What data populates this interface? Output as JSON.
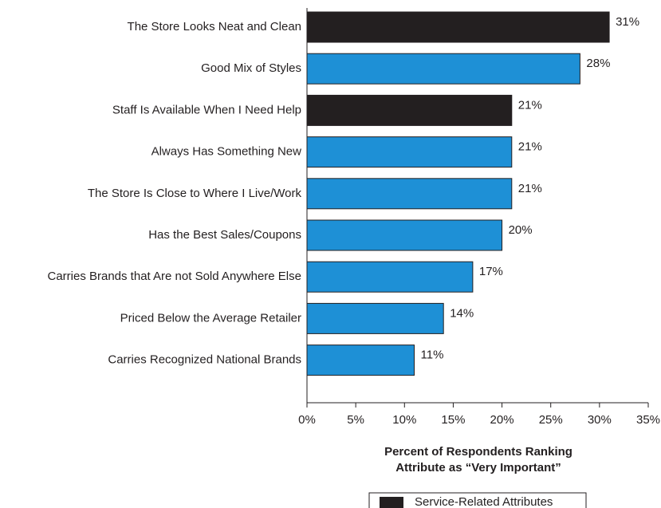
{
  "chart_data": {
    "type": "bar",
    "orientation": "horizontal",
    "categories": [
      "The Store Looks Neat and Clean",
      "Good Mix of Styles",
      "Staff Is Available When I Need Help",
      "Always Has Something New",
      "The Store Is Close to Where I Live/Work",
      "Has the Best Sales/Coupons",
      "Carries Brands that Are not Sold Anywhere Else",
      "Priced Below the Average Retailer",
      "Carries Recognized National Brands"
    ],
    "values": [
      31,
      28,
      21,
      21,
      21,
      20,
      17,
      14,
      11
    ],
    "value_labels": [
      "31%",
      "28%",
      "21%",
      "21%",
      "21%",
      "20%",
      "17%",
      "14%",
      "11%"
    ],
    "colors": [
      "#231f20",
      "#1e90d6",
      "#231f20",
      "#1e90d6",
      "#1e90d6",
      "#1e90d6",
      "#1e90d6",
      "#1e90d6",
      "#1e90d6"
    ],
    "xlim": [
      0,
      35
    ],
    "xticks": [
      {
        "value": 0,
        "label": "0%"
      },
      {
        "value": 5,
        "label": "5%"
      },
      {
        "value": 10,
        "label": "10%"
      },
      {
        "value": 15,
        "label": "15%"
      },
      {
        "value": 20,
        "label": "20%"
      },
      {
        "value": 25,
        "label": "25%"
      },
      {
        "value": 30,
        "label": "30%"
      },
      {
        "value": 35,
        "label": "35%"
      }
    ],
    "xlabel": [
      "Percent of Respondents Ranking",
      "Attribute as “Very Important”"
    ],
    "legend": {
      "label": "Service-Related Attributes",
      "color": "#231f20"
    }
  }
}
